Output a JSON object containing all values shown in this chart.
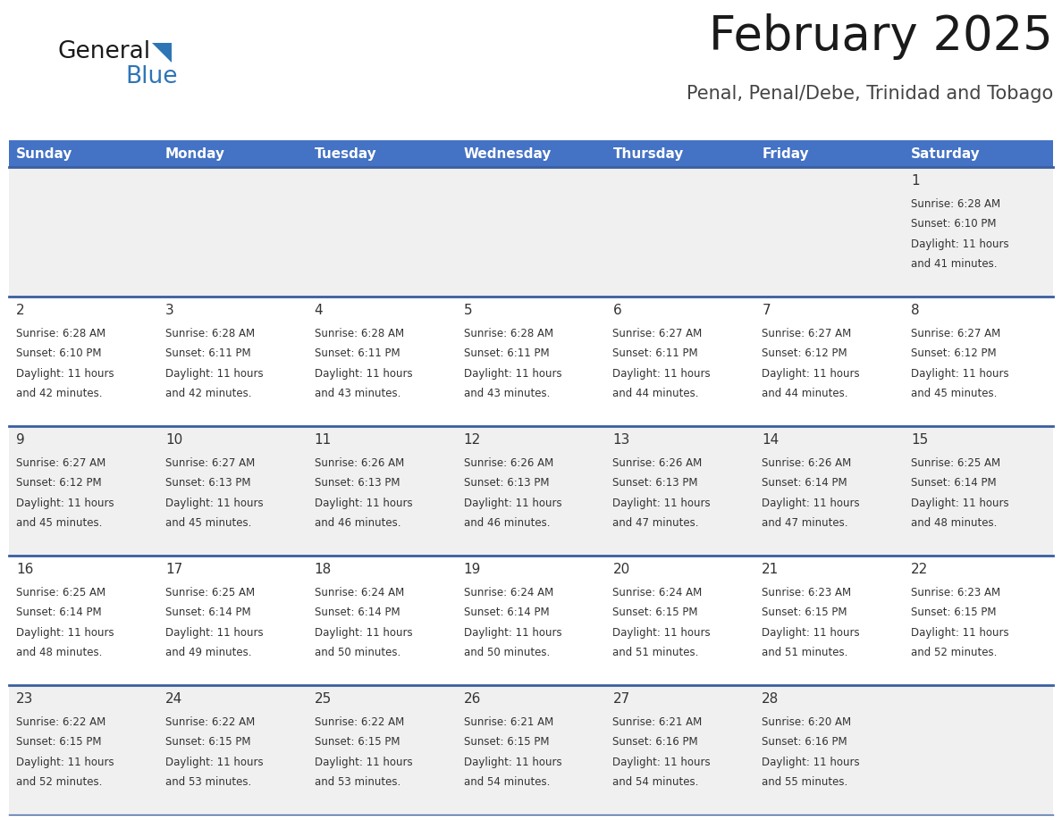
{
  "title": "February 2025",
  "subtitle": "Penal, Penal/Debe, Trinidad and Tobago",
  "header_bg": "#4472C4",
  "header_text": "#FFFFFF",
  "day_names": [
    "Sunday",
    "Monday",
    "Tuesday",
    "Wednesday",
    "Thursday",
    "Friday",
    "Saturday"
  ],
  "row_bg_odd": "#F0F0F0",
  "row_bg_even": "#FFFFFF",
  "cell_border_color": "#3A5FA0",
  "number_color": "#333333",
  "text_color": "#333333",
  "logo_general_color": "#1a1a1a",
  "logo_blue_color": "#2E75B6",
  "logo_triangle_color": "#2E75B6",
  "days": [
    {
      "day": 1,
      "col": 6,
      "row": 0,
      "sunrise": "6:28 AM",
      "sunset": "6:10 PM",
      "daylight": "11 hours and 41 minutes."
    },
    {
      "day": 2,
      "col": 0,
      "row": 1,
      "sunrise": "6:28 AM",
      "sunset": "6:10 PM",
      "daylight": "11 hours and 42 minutes."
    },
    {
      "day": 3,
      "col": 1,
      "row": 1,
      "sunrise": "6:28 AM",
      "sunset": "6:11 PM",
      "daylight": "11 hours and 42 minutes."
    },
    {
      "day": 4,
      "col": 2,
      "row": 1,
      "sunrise": "6:28 AM",
      "sunset": "6:11 PM",
      "daylight": "11 hours and 43 minutes."
    },
    {
      "day": 5,
      "col": 3,
      "row": 1,
      "sunrise": "6:28 AM",
      "sunset": "6:11 PM",
      "daylight": "11 hours and 43 minutes."
    },
    {
      "day": 6,
      "col": 4,
      "row": 1,
      "sunrise": "6:27 AM",
      "sunset": "6:11 PM",
      "daylight": "11 hours and 44 minutes."
    },
    {
      "day": 7,
      "col": 5,
      "row": 1,
      "sunrise": "6:27 AM",
      "sunset": "6:12 PM",
      "daylight": "11 hours and 44 minutes."
    },
    {
      "day": 8,
      "col": 6,
      "row": 1,
      "sunrise": "6:27 AM",
      "sunset": "6:12 PM",
      "daylight": "11 hours and 45 minutes."
    },
    {
      "day": 9,
      "col": 0,
      "row": 2,
      "sunrise": "6:27 AM",
      "sunset": "6:12 PM",
      "daylight": "11 hours and 45 minutes."
    },
    {
      "day": 10,
      "col": 1,
      "row": 2,
      "sunrise": "6:27 AM",
      "sunset": "6:13 PM",
      "daylight": "11 hours and 45 minutes."
    },
    {
      "day": 11,
      "col": 2,
      "row": 2,
      "sunrise": "6:26 AM",
      "sunset": "6:13 PM",
      "daylight": "11 hours and 46 minutes."
    },
    {
      "day": 12,
      "col": 3,
      "row": 2,
      "sunrise": "6:26 AM",
      "sunset": "6:13 PM",
      "daylight": "11 hours and 46 minutes."
    },
    {
      "day": 13,
      "col": 4,
      "row": 2,
      "sunrise": "6:26 AM",
      "sunset": "6:13 PM",
      "daylight": "11 hours and 47 minutes."
    },
    {
      "day": 14,
      "col": 5,
      "row": 2,
      "sunrise": "6:26 AM",
      "sunset": "6:14 PM",
      "daylight": "11 hours and 47 minutes."
    },
    {
      "day": 15,
      "col": 6,
      "row": 2,
      "sunrise": "6:25 AM",
      "sunset": "6:14 PM",
      "daylight": "11 hours and 48 minutes."
    },
    {
      "day": 16,
      "col": 0,
      "row": 3,
      "sunrise": "6:25 AM",
      "sunset": "6:14 PM",
      "daylight": "11 hours and 48 minutes."
    },
    {
      "day": 17,
      "col": 1,
      "row": 3,
      "sunrise": "6:25 AM",
      "sunset": "6:14 PM",
      "daylight": "11 hours and 49 minutes."
    },
    {
      "day": 18,
      "col": 2,
      "row": 3,
      "sunrise": "6:24 AM",
      "sunset": "6:14 PM",
      "daylight": "11 hours and 50 minutes."
    },
    {
      "day": 19,
      "col": 3,
      "row": 3,
      "sunrise": "6:24 AM",
      "sunset": "6:14 PM",
      "daylight": "11 hours and 50 minutes."
    },
    {
      "day": 20,
      "col": 4,
      "row": 3,
      "sunrise": "6:24 AM",
      "sunset": "6:15 PM",
      "daylight": "11 hours and 51 minutes."
    },
    {
      "day": 21,
      "col": 5,
      "row": 3,
      "sunrise": "6:23 AM",
      "sunset": "6:15 PM",
      "daylight": "11 hours and 51 minutes."
    },
    {
      "day": 22,
      "col": 6,
      "row": 3,
      "sunrise": "6:23 AM",
      "sunset": "6:15 PM",
      "daylight": "11 hours and 52 minutes."
    },
    {
      "day": 23,
      "col": 0,
      "row": 4,
      "sunrise": "6:22 AM",
      "sunset": "6:15 PM",
      "daylight": "11 hours and 52 minutes."
    },
    {
      "day": 24,
      "col": 1,
      "row": 4,
      "sunrise": "6:22 AM",
      "sunset": "6:15 PM",
      "daylight": "11 hours and 53 minutes."
    },
    {
      "day": 25,
      "col": 2,
      "row": 4,
      "sunrise": "6:22 AM",
      "sunset": "6:15 PM",
      "daylight": "11 hours and 53 minutes."
    },
    {
      "day": 26,
      "col": 3,
      "row": 4,
      "sunrise": "6:21 AM",
      "sunset": "6:15 PM",
      "daylight": "11 hours and 54 minutes."
    },
    {
      "day": 27,
      "col": 4,
      "row": 4,
      "sunrise": "6:21 AM",
      "sunset": "6:16 PM",
      "daylight": "11 hours and 54 minutes."
    },
    {
      "day": 28,
      "col": 5,
      "row": 4,
      "sunrise": "6:20 AM",
      "sunset": "6:16 PM",
      "daylight": "11 hours and 55 minutes."
    }
  ]
}
